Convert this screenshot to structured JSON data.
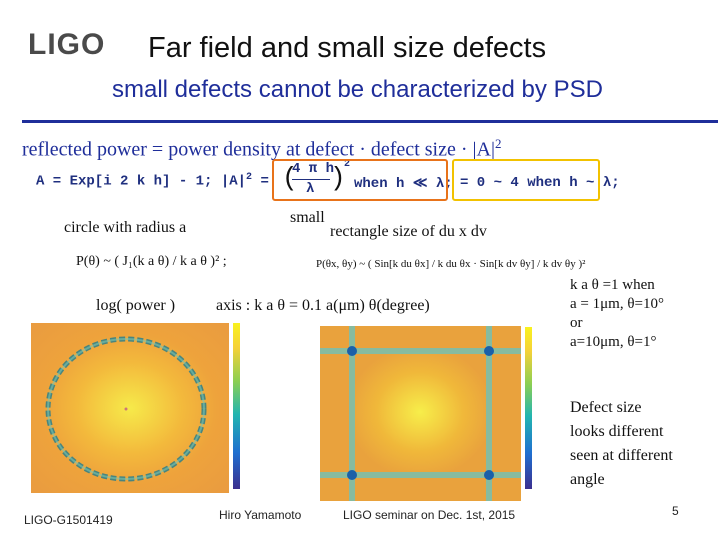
{
  "header": {
    "logo": "LIGO",
    "title": "Far field and small size defects",
    "subtitle": "small defects cannot be characterized by PSD"
  },
  "equation": {
    "main_text": "reflected power = power density at defect · defect size · |A|",
    "main_exp": "2",
    "code_part1": "A = Exp[i 2 k h] - 1; |A|",
    "code_exp": "2",
    "code_part2": " =",
    "frac_num": "4 π h",
    "frac_den": "λ",
    "cond1": "when h ≪ λ;",
    "cond2": "= 0 ~ 4 when h ~ λ;"
  },
  "labels": {
    "small": "small",
    "circle": "circle with radius a",
    "rectangle": "rectangle size of du x dv",
    "circle_formula": "P(θ) ~ ( J₁(k a θ) / k a θ )² ;",
    "rect_formula": "P(θx, θy) ~ ( Sin[k du θx] / k du θx · Sin[k dv θy] / k dv θy )²",
    "log_power": "log( power )",
    "axis": "axis : k a θ = 0.1 a(μm) θ(degree)"
  },
  "side_note": {
    "line1": "k a θ =1 when",
    "line2": "a = 1μm, θ=10°",
    "line3": "or",
    "line4": "a=10μm, θ=1°",
    "defect_lines": [
      "Defect size",
      "looks different",
      "seen at different",
      "angle"
    ]
  },
  "footer": {
    "doc_id": "LIGO-G1501419",
    "author": "Hiro Yamamoto",
    "seminar": "LIGO seminar on Dec. 1st, 2015",
    "page": "5"
  },
  "colors": {
    "accent_blue": "#1f2e9a",
    "highlight_orange": "#e8731a",
    "highlight_yellow": "#f2c200"
  }
}
